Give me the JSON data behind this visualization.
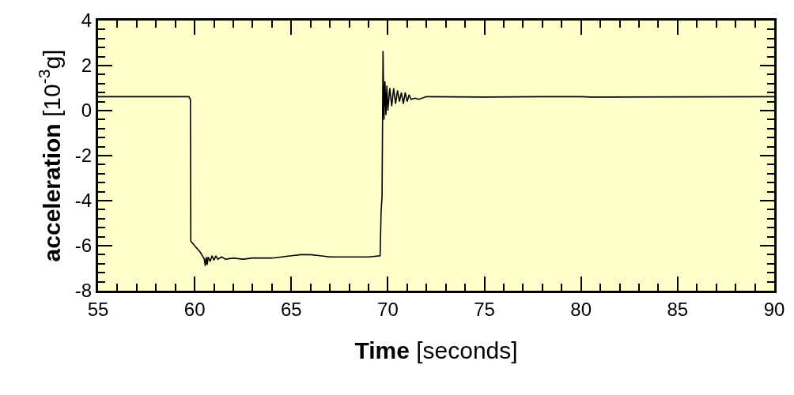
{
  "chart_data": {
    "type": "line",
    "xlabel": "Time [seconds]",
    "ylabel": "acceleration [10$^{-3}$g]",
    "x": [
      55,
      59.7,
      59.78,
      59.8,
      59.85,
      60.0,
      60.3,
      60.5,
      60.55,
      60.6,
      60.65,
      60.7,
      60.8,
      60.9,
      61.0,
      61.1,
      61.2,
      61.4,
      61.6,
      62,
      62.5,
      63,
      63.5,
      64,
      64.5,
      65,
      65.5,
      66,
      66.5,
      67,
      68,
      69,
      69.6,
      69.65,
      69.7,
      69.75,
      69.8,
      69.85,
      69.9,
      69.95,
      70.0,
      70.1,
      70.2,
      70.3,
      70.4,
      70.5,
      70.6,
      70.7,
      70.8,
      70.9,
      71.0,
      71.1,
      71.2,
      71.4,
      71.6,
      72,
      75,
      78,
      80,
      80.5,
      90
    ],
    "series": [
      {
        "color": "#000000",
        "values": [
          0.62,
          0.62,
          0.5,
          -5.8,
          -5.85,
          -6.0,
          -6.3,
          -6.6,
          -6.9,
          -6.5,
          -6.85,
          -6.5,
          -6.7,
          -6.45,
          -6.65,
          -6.45,
          -6.6,
          -6.5,
          -6.6,
          -6.55,
          -6.6,
          -6.55,
          -6.55,
          -6.55,
          -6.5,
          -6.45,
          -6.4,
          -6.4,
          -6.45,
          -6.5,
          -6.5,
          -6.5,
          -6.45,
          -4.5,
          -3.8,
          2.65,
          -0.4,
          1.3,
          -0.2,
          1.1,
          0.0,
          1.0,
          0.2,
          1.0,
          0.3,
          0.9,
          0.4,
          0.8,
          0.3,
          0.8,
          0.4,
          0.7,
          0.5,
          0.55,
          0.5,
          0.62,
          0.6,
          0.62,
          0.62,
          0.6,
          0.62
        ]
      }
    ],
    "xlim": [
      55,
      90
    ],
    "xticks": [
      55,
      60,
      65,
      70,
      75,
      80,
      85,
      90
    ],
    "ylim": [
      -8,
      4
    ],
    "yticks": [
      -8,
      -6,
      -4,
      -2,
      0,
      2,
      4
    ],
    "line_style": "solid"
  }
}
